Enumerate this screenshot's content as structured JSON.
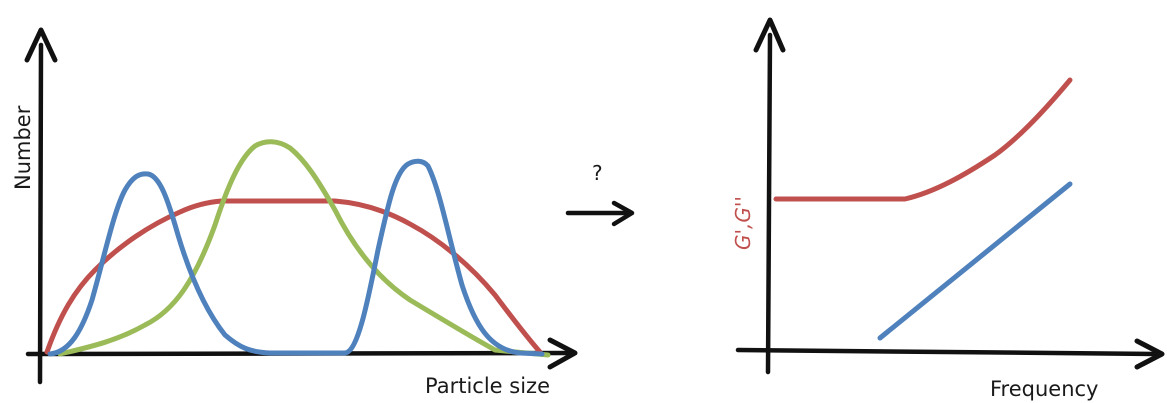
{
  "left_panel": {
    "y_label": "Number",
    "x_label": "Particle size",
    "curves": [
      {
        "color": "#c0504d",
        "shape": "broad-plateau"
      },
      {
        "color": "#9bbb59",
        "shape": "single-peak"
      },
      {
        "color": "#4f81bd",
        "shape": "bimodal"
      }
    ]
  },
  "transition": {
    "question": "?",
    "arrow_icon": "right-arrow-icon"
  },
  "right_panel": {
    "y_label": "G',G''",
    "x_label": "Frequency",
    "curves": [
      {
        "color": "#c0504d",
        "shape": "plateau-then-rise"
      },
      {
        "color": "#4f81bd",
        "shape": "straight-line"
      }
    ]
  }
}
